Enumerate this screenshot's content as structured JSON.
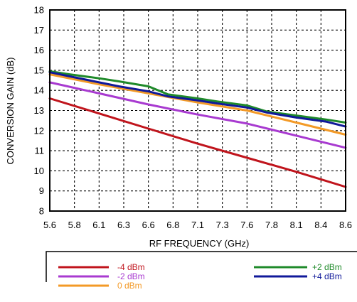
{
  "chart_data": {
    "type": "line",
    "xlabel": "RF FREQUENCY (GHz)",
    "ylabel": "CONVERSION GAIN (dB)",
    "ylim": [
      8,
      18
    ],
    "yticks": [
      "8",
      "9",
      "10",
      "11",
      "12",
      "13",
      "14",
      "15",
      "16",
      "17",
      "18"
    ],
    "xticks": [
      "5.6",
      "5.8",
      "6.1",
      "6.3",
      "6.6",
      "6.8",
      "7.1",
      "7.3",
      "7.6",
      "7.8",
      "8.1",
      "8.4",
      "8.6"
    ],
    "xlim": [
      5.6,
      8.6
    ],
    "grid": true,
    "legend_position": "below",
    "series": [
      {
        "name": "-4 dBm",
        "color": "#c0141c",
        "x": [
          5.6,
          6.1,
          6.6,
          7.1,
          7.6,
          8.1,
          8.6
        ],
        "y": [
          13.6,
          12.85,
          12.1,
          11.35,
          10.65,
          9.95,
          9.2
        ]
      },
      {
        "name": "-2 dBm",
        "color": "#a83ad0",
        "x": [
          5.6,
          6.1,
          6.6,
          7.1,
          7.6,
          8.1,
          8.6
        ],
        "y": [
          14.4,
          13.85,
          13.3,
          12.8,
          12.35,
          11.75,
          11.15
        ]
      },
      {
        "name": "0 dBm",
        "color": "#f39a27",
        "x": [
          5.6,
          6.1,
          6.6,
          7.1,
          7.6,
          8.1,
          8.6
        ],
        "y": [
          14.8,
          14.3,
          13.85,
          13.4,
          13.0,
          12.4,
          11.8
        ]
      },
      {
        "name": "+2 dBm",
        "color": "#1f8a2a",
        "x": [
          5.6,
          5.8,
          6.1,
          6.3,
          6.6,
          6.8,
          7.1,
          7.3,
          7.6,
          7.8,
          8.1,
          8.4,
          8.6
        ],
        "y": [
          14.95,
          14.8,
          14.6,
          14.45,
          14.2,
          13.8,
          13.6,
          13.45,
          13.25,
          12.95,
          12.75,
          12.55,
          12.4
        ]
      },
      {
        "name": "+4 dBm",
        "color": "#10199a",
        "x": [
          5.6,
          5.8,
          6.1,
          6.3,
          6.6,
          6.8,
          7.1,
          7.3,
          7.6,
          7.8,
          8.1,
          8.4,
          8.6
        ],
        "y": [
          14.9,
          14.7,
          14.4,
          14.2,
          13.95,
          13.7,
          13.5,
          13.35,
          13.15,
          12.9,
          12.65,
          12.45,
          12.2
        ]
      }
    ]
  }
}
